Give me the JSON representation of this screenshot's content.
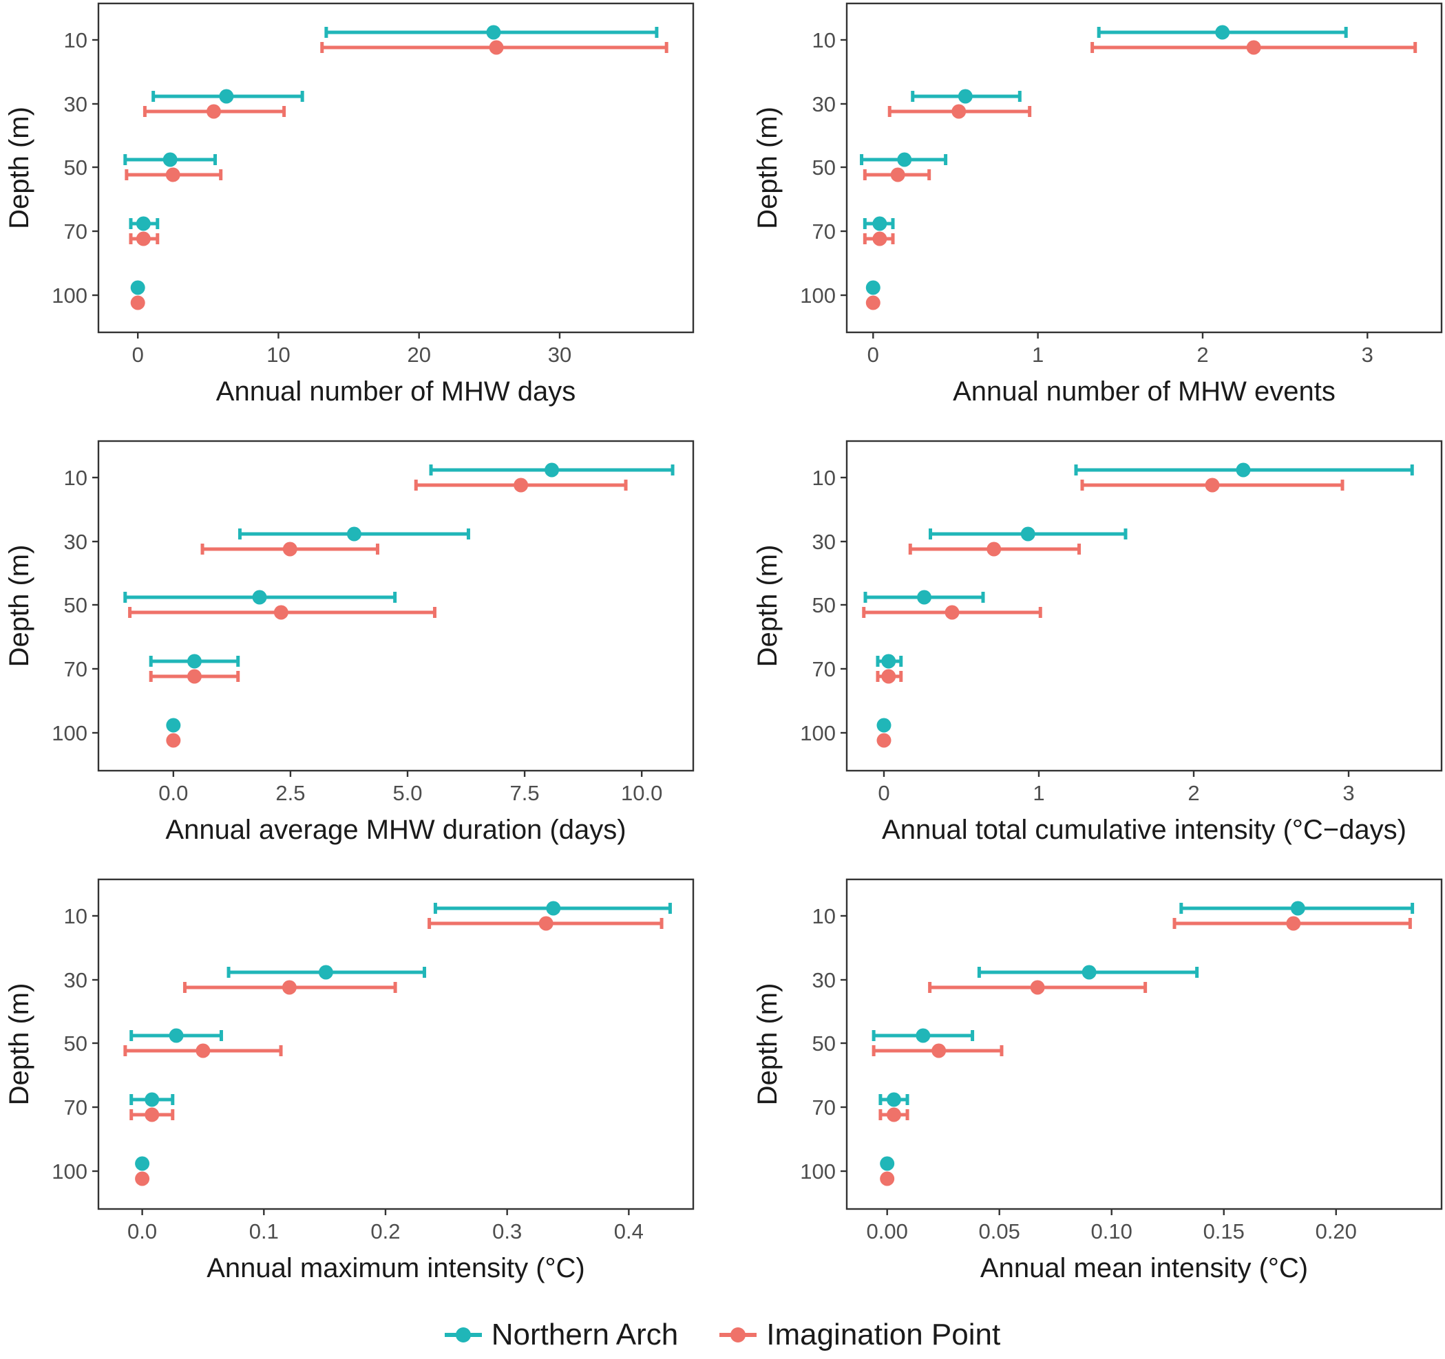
{
  "colors": {
    "northern_arch": "#20B6B8",
    "imagination_point": "#EF7269"
  },
  "legend": [
    {
      "name": "Northern Arch",
      "color": "#20B6B8"
    },
    {
      "name": "Imagination Point",
      "color": "#EF7269"
    }
  ],
  "chart_data": [
    {
      "type": "dot-errorbar",
      "xlabel": "Annual number of MHW days",
      "ylabel": "Depth (m)",
      "xlim": [
        -2.8,
        39.5
      ],
      "xticks": [
        "0",
        "10",
        "20",
        "30"
      ],
      "yticks": [
        "10",
        "30",
        "50",
        "70",
        "100"
      ],
      "series": [
        {
          "name": "Northern Arch",
          "points": [
            {
              "depth": "10",
              "mean": 25.3,
              "lo": 13.4,
              "hi": 36.9
            },
            {
              "depth": "30",
              "mean": 6.3,
              "lo": 1.1,
              "hi": 11.7
            },
            {
              "depth": "50",
              "mean": 2.3,
              "lo": -0.9,
              "hi": 5.5
            },
            {
              "depth": "70",
              "mean": 0.4,
              "lo": -0.5,
              "hi": 1.4
            },
            {
              "depth": "100",
              "mean": 0.0
            }
          ]
        },
        {
          "name": "Imagination Point",
          "points": [
            {
              "depth": "10",
              "mean": 25.5,
              "lo": 13.1,
              "hi": 37.6
            },
            {
              "depth": "30",
              "mean": 5.4,
              "lo": 0.5,
              "hi": 10.4
            },
            {
              "depth": "50",
              "mean": 2.5,
              "lo": -0.8,
              "hi": 5.9
            },
            {
              "depth": "70",
              "mean": 0.4,
              "lo": -0.5,
              "hi": 1.4
            },
            {
              "depth": "100",
              "mean": 0.0
            }
          ]
        }
      ]
    },
    {
      "type": "dot-errorbar",
      "xlabel": "Annual number of MHW events",
      "ylabel": "Depth (m)",
      "xlim": [
        -0.16,
        3.45
      ],
      "xticks": [
        "0",
        "1",
        "2",
        "3"
      ],
      "yticks": [
        "10",
        "30",
        "50",
        "70",
        "100"
      ],
      "series": [
        {
          "name": "Northern Arch",
          "points": [
            {
              "depth": "10",
              "mean": 2.12,
              "lo": 1.37,
              "hi": 2.87
            },
            {
              "depth": "30",
              "mean": 0.56,
              "lo": 0.24,
              "hi": 0.89
            },
            {
              "depth": "50",
              "mean": 0.19,
              "lo": -0.07,
              "hi": 0.44
            },
            {
              "depth": "70",
              "mean": 0.04,
              "lo": -0.05,
              "hi": 0.12
            },
            {
              "depth": "100",
              "mean": 0.0
            }
          ]
        },
        {
          "name": "Imagination Point",
          "points": [
            {
              "depth": "10",
              "mean": 2.31,
              "lo": 1.33,
              "hi": 3.29
            },
            {
              "depth": "30",
              "mean": 0.52,
              "lo": 0.1,
              "hi": 0.95
            },
            {
              "depth": "50",
              "mean": 0.15,
              "lo": -0.05,
              "hi": 0.34
            },
            {
              "depth": "70",
              "mean": 0.04,
              "lo": -0.05,
              "hi": 0.12
            },
            {
              "depth": "100",
              "mean": 0.0
            }
          ]
        }
      ]
    },
    {
      "type": "dot-errorbar",
      "xlabel": "Annual average MHW duration (days)",
      "ylabel": "Depth (m)",
      "xlim": [
        -1.6,
        11.1
      ],
      "xticks": [
        "0.0",
        "2.5",
        "5.0",
        "7.5",
        "10.0"
      ],
      "yticks": [
        "10",
        "30",
        "50",
        "70",
        "100"
      ],
      "series": [
        {
          "name": "Northern Arch",
          "points": [
            {
              "depth": "10",
              "mean": 8.08,
              "lo": 5.5,
              "hi": 10.66
            },
            {
              "depth": "30",
              "mean": 3.86,
              "lo": 1.42,
              "hi": 6.3
            },
            {
              "depth": "50",
              "mean": 1.84,
              "lo": -1.03,
              "hi": 4.73
            },
            {
              "depth": "70",
              "mean": 0.45,
              "lo": -0.48,
              "hi": 1.38
            },
            {
              "depth": "100",
              "mean": 0.0
            }
          ]
        },
        {
          "name": "Imagination Point",
          "points": [
            {
              "depth": "10",
              "mean": 7.42,
              "lo": 5.18,
              "hi": 9.66
            },
            {
              "depth": "30",
              "mean": 2.49,
              "lo": 0.62,
              "hi": 4.36
            },
            {
              "depth": "50",
              "mean": 2.3,
              "lo": -0.93,
              "hi": 5.58
            },
            {
              "depth": "70",
              "mean": 0.45,
              "lo": -0.48,
              "hi": 1.38
            },
            {
              "depth": "100",
              "mean": 0.0
            }
          ]
        }
      ]
    },
    {
      "type": "dot-errorbar",
      "xlabel": "Annual total cumulative intensity (°C−days)",
      "ylabel": "Depth (m)",
      "xlim": [
        -0.24,
        3.6
      ],
      "xticks": [
        "0",
        "1",
        "2",
        "3"
      ],
      "yticks": [
        "10",
        "30",
        "50",
        "70",
        "100"
      ],
      "series": [
        {
          "name": "Northern Arch",
          "points": [
            {
              "depth": "10",
              "mean": 2.32,
              "lo": 1.24,
              "hi": 3.41
            },
            {
              "depth": "30",
              "mean": 0.93,
              "lo": 0.3,
              "hi": 1.56
            },
            {
              "depth": "50",
              "mean": 0.26,
              "lo": -0.12,
              "hi": 0.64
            },
            {
              "depth": "70",
              "mean": 0.03,
              "lo": -0.04,
              "hi": 0.11
            },
            {
              "depth": "100",
              "mean": 0.0
            }
          ]
        },
        {
          "name": "Imagination Point",
          "points": [
            {
              "depth": "10",
              "mean": 2.12,
              "lo": 1.28,
              "hi": 2.96
            },
            {
              "depth": "30",
              "mean": 0.71,
              "lo": 0.17,
              "hi": 1.26
            },
            {
              "depth": "50",
              "mean": 0.44,
              "lo": -0.13,
              "hi": 1.01
            },
            {
              "depth": "70",
              "mean": 0.03,
              "lo": -0.04,
              "hi": 0.11
            },
            {
              "depth": "100",
              "mean": 0.0
            }
          ]
        }
      ]
    },
    {
      "type": "dot-errorbar",
      "xlabel": "Annual maximum intensity (°C)",
      "ylabel": "Depth (m)",
      "xlim": [
        -0.036,
        0.453
      ],
      "xticks": [
        "0.0",
        "0.1",
        "0.2",
        "0.3",
        "0.4"
      ],
      "yticks": [
        "10",
        "30",
        "50",
        "70",
        "100"
      ],
      "series": [
        {
          "name": "Northern Arch",
          "points": [
            {
              "depth": "10",
              "mean": 0.338,
              "lo": 0.241,
              "hi": 0.434
            },
            {
              "depth": "30",
              "mean": 0.151,
              "lo": 0.071,
              "hi": 0.232
            },
            {
              "depth": "50",
              "mean": 0.028,
              "lo": -0.009,
              "hi": 0.065
            },
            {
              "depth": "70",
              "mean": 0.008,
              "lo": -0.009,
              "hi": 0.025
            },
            {
              "depth": "100",
              "mean": 0.0
            }
          ]
        },
        {
          "name": "Imagination Point",
          "points": [
            {
              "depth": "10",
              "mean": 0.332,
              "lo": 0.236,
              "hi": 0.427
            },
            {
              "depth": "30",
              "mean": 0.121,
              "lo": 0.035,
              "hi": 0.208
            },
            {
              "depth": "50",
              "mean": 0.05,
              "lo": -0.014,
              "hi": 0.114
            },
            {
              "depth": "70",
              "mean": 0.008,
              "lo": -0.009,
              "hi": 0.025
            },
            {
              "depth": "100",
              "mean": 0.0
            }
          ]
        }
      ]
    },
    {
      "type": "dot-errorbar",
      "xlabel": "Annual mean intensity (°C)",
      "ylabel": "Depth (m)",
      "xlim": [
        -0.018,
        0.247
      ],
      "xticks": [
        "0.00",
        "0.05",
        "0.10",
        "0.15",
        "0.20"
      ],
      "yticks": [
        "10",
        "30",
        "50",
        "70",
        "100"
      ],
      "series": [
        {
          "name": "Northern Arch",
          "points": [
            {
              "depth": "10",
              "mean": 0.183,
              "lo": 0.131,
              "hi": 0.234
            },
            {
              "depth": "30",
              "mean": 0.09,
              "lo": 0.041,
              "hi": 0.138
            },
            {
              "depth": "50",
              "mean": 0.016,
              "lo": -0.006,
              "hi": 0.038
            },
            {
              "depth": "70",
              "mean": 0.003,
              "lo": -0.003,
              "hi": 0.009
            },
            {
              "depth": "100",
              "mean": 0.0
            }
          ]
        },
        {
          "name": "Imagination Point",
          "points": [
            {
              "depth": "10",
              "mean": 0.181,
              "lo": 0.128,
              "hi": 0.233
            },
            {
              "depth": "30",
              "mean": 0.067,
              "lo": 0.019,
              "hi": 0.115
            },
            {
              "depth": "50",
              "mean": 0.023,
              "lo": -0.006,
              "hi": 0.051
            },
            {
              "depth": "70",
              "mean": 0.003,
              "lo": -0.003,
              "hi": 0.009
            },
            {
              "depth": "100",
              "mean": 0.0
            }
          ]
        }
      ]
    }
  ]
}
